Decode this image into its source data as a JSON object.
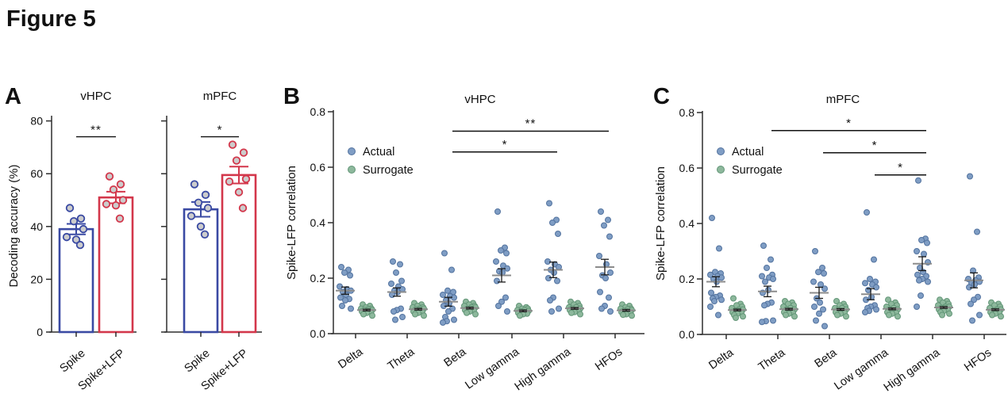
{
  "figure_title": "Figure 5",
  "panel_labels": {
    "A": "A",
    "B": "B",
    "C": "C"
  },
  "chart_data": [
    {
      "panel": "A",
      "type": "bar",
      "ylabel": "Decoding accuracy (%)",
      "ylim": [
        0,
        80
      ],
      "yticks": [
        0,
        20,
        40,
        60,
        80
      ],
      "bar_colors": [
        "#3a4aa3",
        "#d3374b"
      ],
      "point_fill": "#cccccc",
      "subplots": [
        {
          "title": "vHPC",
          "categories": [
            "Spike",
            "Spike+LFP"
          ],
          "bar_means": [
            39,
            51
          ],
          "bar_sems": [
            2.0,
            2.2
          ],
          "points": [
            [
              47,
              43,
              42,
              39,
              36,
              35,
              33
            ],
            [
              59,
              56,
              54,
              50,
              48.5,
              48,
              43
            ]
          ],
          "significance": {
            "label": "**",
            "y": 74
          }
        },
        {
          "title": "mPFC",
          "categories": [
            "Spike",
            "Spike+LFP"
          ],
          "bar_means": [
            46.5,
            59.5
          ],
          "bar_sems": [
            2.8,
            3.2
          ],
          "points": [
            [
              56,
              52,
              49,
              47,
              44,
              40,
              37
            ],
            [
              71,
              68,
              65,
              58,
              57,
              53,
              47
            ]
          ],
          "significance": {
            "label": "*",
            "y": 74
          }
        }
      ]
    },
    {
      "panel": "B",
      "type": "scatter",
      "title": "vHPC",
      "ylabel": "Spike-LFP correlation",
      "ylim": [
        0,
        0.8
      ],
      "ytick_labels": [
        "0.0",
        "0.2",
        "0.4",
        "0.6",
        "0.8"
      ],
      "categories": [
        "Delta",
        "Theta",
        "Beta",
        "Low gamma",
        "High gamma",
        "HFOs"
      ],
      "legend": [
        {
          "label": "Actual",
          "fill": "#7f9dc4",
          "stroke": "#53739f"
        },
        {
          "label": "Surrogate",
          "fill": "#8db89c",
          "stroke": "#639678"
        }
      ],
      "series": [
        {
          "name": "Actual",
          "means": [
            0.155,
            0.15,
            0.115,
            0.21,
            0.23,
            0.24
          ],
          "sems": [
            0.013,
            0.015,
            0.016,
            0.024,
            0.028,
            0.028
          ],
          "points": [
            [
              0.24,
              0.23,
              0.22,
              0.21,
              0.17,
              0.16,
              0.155,
              0.15,
              0.14,
              0.13,
              0.125,
              0.12,
              0.1,
              0.09
            ],
            [
              0.26,
              0.25,
              0.22,
              0.19,
              0.18,
              0.17,
              0.16,
              0.155,
              0.15,
              0.14,
              0.09,
              0.085,
              0.08,
              0.06,
              0.05
            ],
            [
              0.29,
              0.23,
              0.155,
              0.15,
              0.14,
              0.135,
              0.13,
              0.12,
              0.11,
              0.1,
              0.09,
              0.08,
              0.06,
              0.05,
              0.045,
              0.04
            ],
            [
              0.44,
              0.31,
              0.3,
              0.29,
              0.26,
              0.245,
              0.235,
              0.225,
              0.22,
              0.19,
              0.13,
              0.115,
              0.1,
              0.08
            ],
            [
              0.47,
              0.41,
              0.4,
              0.36,
              0.26,
              0.25,
              0.24,
              0.23,
              0.22,
              0.2,
              0.19,
              0.13,
              0.12,
              0.09,
              0.08
            ],
            [
              0.44,
              0.41,
              0.39,
              0.35,
              0.28,
              0.25,
              0.22,
              0.21,
              0.2,
              0.15,
              0.13,
              0.1,
              0.09,
              0.08
            ]
          ]
        },
        {
          "name": "Surrogate",
          "means": [
            0.085,
            0.088,
            0.092,
            0.082,
            0.091,
            0.084
          ],
          "sems": [
            0.003,
            0.003,
            0.003,
            0.003,
            0.003,
            0.003
          ],
          "points": [
            [
              0.105,
              0.1,
              0.095,
              0.09,
              0.09,
              0.088,
              0.085,
              0.085,
              0.082,
              0.08,
              0.078,
              0.075,
              0.07,
              0.065
            ],
            [
              0.11,
              0.105,
              0.1,
              0.095,
              0.095,
              0.09,
              0.09,
              0.088,
              0.085,
              0.08,
              0.078,
              0.075,
              0.07,
              0.065
            ],
            [
              0.115,
              0.11,
              0.105,
              0.1,
              0.1,
              0.095,
              0.095,
              0.09,
              0.09,
              0.085,
              0.085,
              0.08,
              0.075,
              0.07
            ],
            [
              0.1,
              0.095,
              0.09,
              0.09,
              0.085,
              0.085,
              0.082,
              0.08,
              0.078,
              0.075,
              0.072,
              0.07,
              0.065
            ],
            [
              0.115,
              0.11,
              0.105,
              0.1,
              0.095,
              0.095,
              0.09,
              0.09,
              0.085,
              0.085,
              0.08,
              0.078,
              0.075,
              0.07
            ],
            [
              0.105,
              0.1,
              0.095,
              0.09,
              0.09,
              0.088,
              0.085,
              0.082,
              0.08,
              0.078,
              0.075,
              0.07,
              0.068,
              0.065
            ]
          ]
        }
      ],
      "significance": [
        {
          "from": "Beta",
          "to": "HFOs",
          "label": "**",
          "y": 0.73
        },
        {
          "from": "Beta",
          "to": "High gamma",
          "label": "*",
          "y": 0.655
        }
      ]
    },
    {
      "panel": "C",
      "type": "scatter",
      "title": "mPFC",
      "ylabel": "Spike-LFP correlation",
      "ylim": [
        0,
        0.8
      ],
      "ytick_labels": [
        "0.0",
        "0.2",
        "0.4",
        "0.6",
        "0.8"
      ],
      "categories": [
        "Delta",
        "Theta",
        "Beta",
        "Low gamma",
        "High gamma",
        "HFOs"
      ],
      "legend": [
        {
          "label": "Actual",
          "fill": "#7f9dc4",
          "stroke": "#53739f"
        },
        {
          "label": "Surrogate",
          "fill": "#8db89c",
          "stroke": "#639678"
        }
      ],
      "series": [
        {
          "name": "Actual",
          "means": [
            0.19,
            0.155,
            0.15,
            0.145,
            0.255,
            0.195
          ],
          "sems": [
            0.018,
            0.019,
            0.02,
            0.02,
            0.025,
            0.027
          ],
          "points": [
            [
              0.42,
              0.31,
              0.225,
              0.22,
              0.215,
              0.21,
              0.205,
              0.2,
              0.19,
              0.15,
              0.14,
              0.135,
              0.13,
              0.125,
              0.12,
              0.1,
              0.07
            ],
            [
              0.32,
              0.27,
              0.24,
              0.215,
              0.21,
              0.205,
              0.2,
              0.19,
              0.16,
              0.15,
              0.115,
              0.11,
              0.105,
              0.05,
              0.048,
              0.045
            ],
            [
              0.3,
              0.24,
              0.225,
              0.22,
              0.19,
              0.18,
              0.165,
              0.13,
              0.115,
              0.1,
              0.09,
              0.075,
              0.05,
              0.03
            ],
            [
              0.44,
              0.27,
              0.2,
              0.19,
              0.185,
              0.18,
              0.17,
              0.16,
              0.135,
              0.125,
              0.105,
              0.1,
              0.095,
              0.09,
              0.085,
              0.08
            ],
            [
              0.555,
              0.345,
              0.34,
              0.33,
              0.3,
              0.29,
              0.26,
              0.24,
              0.225,
              0.215,
              0.21,
              0.2,
              0.195,
              0.19,
              0.14,
              0.1
            ],
            [
              0.57,
              0.37,
              0.23,
              0.205,
              0.2,
              0.195,
              0.19,
              0.185,
              0.18,
              0.17,
              0.135,
              0.125,
              0.11,
              0.07,
              0.05
            ]
          ]
        },
        {
          "name": "Surrogate",
          "means": [
            0.088,
            0.091,
            0.09,
            0.092,
            0.097,
            0.089
          ],
          "sems": [
            0.003,
            0.003,
            0.003,
            0.003,
            0.003,
            0.003
          ],
          "points": [
            [
              0.13,
              0.11,
              0.105,
              0.1,
              0.095,
              0.09,
              0.09,
              0.085,
              0.085,
              0.08,
              0.078,
              0.075,
              0.07,
              0.065,
              0.06
            ],
            [
              0.12,
              0.115,
              0.11,
              0.105,
              0.1,
              0.095,
              0.09,
              0.09,
              0.085,
              0.08,
              0.078,
              0.075,
              0.07,
              0.065
            ],
            [
              0.12,
              0.11,
              0.105,
              0.1,
              0.095,
              0.095,
              0.09,
              0.088,
              0.085,
              0.08,
              0.078,
              0.075,
              0.07,
              0.065
            ],
            [
              0.125,
              0.115,
              0.11,
              0.105,
              0.1,
              0.095,
              0.09,
              0.09,
              0.085,
              0.08,
              0.078,
              0.075,
              0.07,
              0.065
            ],
            [
              0.125,
              0.12,
              0.115,
              0.11,
              0.105,
              0.1,
              0.1,
              0.095,
              0.095,
              0.09,
              0.088,
              0.085,
              0.08,
              0.075,
              0.07
            ],
            [
              0.115,
              0.11,
              0.105,
              0.1,
              0.095,
              0.09,
              0.09,
              0.085,
              0.085,
              0.08,
              0.078,
              0.075,
              0.07,
              0.065
            ]
          ]
        }
      ],
      "significance": [
        {
          "from": "Theta",
          "to": "High gamma",
          "label": "*",
          "y": 0.735
        },
        {
          "from": "Beta",
          "to": "High gamma",
          "label": "*",
          "y": 0.655
        },
        {
          "from": "Low gamma",
          "to": "High gamma",
          "label": "*",
          "y": 0.575
        }
      ]
    }
  ]
}
